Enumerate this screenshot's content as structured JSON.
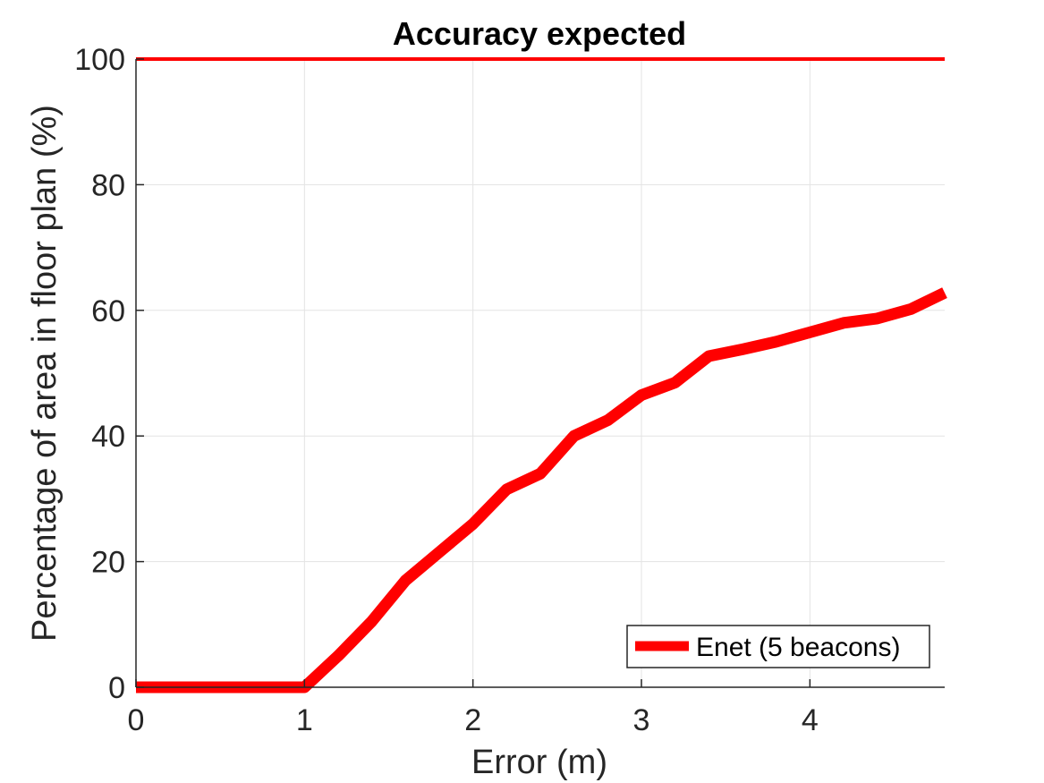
{
  "chart_data": {
    "type": "line",
    "title": "Accuracy expected",
    "xlabel": "Error (m)",
    "ylabel": "Percentage of area in floor plan (%)",
    "xlim": [
      0,
      4.8
    ],
    "ylim": [
      0,
      100
    ],
    "xticks": [
      0,
      1,
      2,
      3,
      4
    ],
    "yticks": [
      0,
      20,
      40,
      60,
      80,
      100
    ],
    "grid": true,
    "legend_position": "bottom-right",
    "series": [
      {
        "name": "Enet (5 beacons)",
        "color": "#ff0000",
        "x": [
          0,
          0.2,
          0.4,
          0.6,
          0.8,
          1.0,
          1.2,
          1.4,
          1.6,
          1.8,
          2.0,
          2.2,
          2.4,
          2.6,
          2.8,
          3.0,
          3.2,
          3.4,
          3.6,
          3.8,
          4.0,
          4.2,
          4.4,
          4.6,
          4.8
        ],
        "y": [
          0,
          0,
          0,
          0,
          0,
          0,
          5,
          10.5,
          17,
          21.5,
          26,
          31.5,
          34,
          40,
          42.5,
          46.5,
          48.5,
          52.7,
          53.8,
          55,
          56.5,
          58,
          58.7,
          60.2,
          62.8
        ]
      }
    ],
    "reference_line": {
      "y": 100,
      "color": "#ff0000"
    }
  }
}
